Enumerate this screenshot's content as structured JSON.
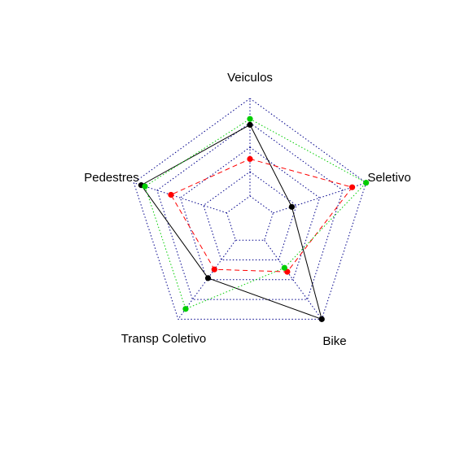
{
  "chart_data": {
    "type": "radar",
    "axes": [
      "Veiculos",
      "Seletivo",
      "Bike",
      "Transp Coletivo",
      "Pedestres"
    ],
    "range": [
      0,
      1
    ],
    "grid_rings": 5,
    "series": [
      {
        "color": "#000000",
        "line_style": "solid",
        "values": [
          0.73,
          0.2,
          1.0,
          0.48,
          0.92
        ]
      },
      {
        "color": "#ff0000",
        "line_style": "dashed",
        "values": [
          0.38,
          0.85,
          0.4,
          0.37,
          0.6
        ]
      },
      {
        "color": "#00cd00",
        "line_style": "dotted",
        "values": [
          0.79,
          1.0,
          0.35,
          0.87,
          0.88
        ]
      }
    ]
  }
}
